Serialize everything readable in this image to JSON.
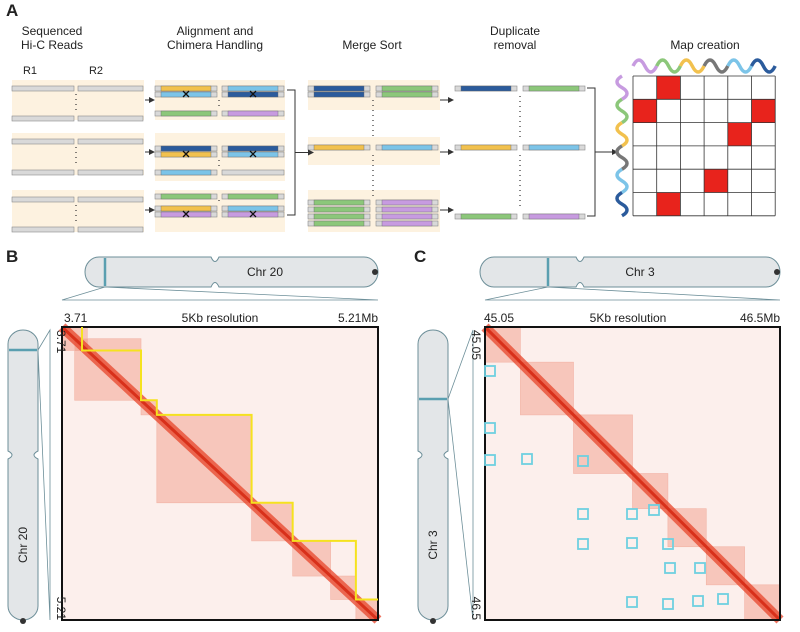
{
  "panels": {
    "A": {
      "label": "A",
      "steps": [
        {
          "title": [
            "Sequenced",
            "Hi-C Reads"
          ]
        },
        {
          "title": [
            "Alignment and",
            "Chimera Handling"
          ]
        },
        {
          "title": [
            "Merge Sort"
          ]
        },
        {
          "title": [
            "Duplicate",
            "removal"
          ]
        },
        {
          "title": [
            "Map creation"
          ]
        }
      ],
      "read_labels": [
        "R1",
        "R2"
      ]
    },
    "B": {
      "label": "B",
      "chromosome": "Chr 20",
      "range_start": "3.71",
      "resolution": "5Kb resolution",
      "range_end": "5.21Mb",
      "left_start": "3.71",
      "left_end": "5.21",
      "side_chromosome": "Chr 20"
    },
    "C": {
      "label": "C",
      "chromosome": "Chr 3",
      "range_start": "45.05",
      "resolution": "5Kb resolution",
      "range_end": "46.5Mb",
      "left_start": "45.05",
      "left_end": "46.5",
      "side_chromosome": "Chr 3"
    }
  }
}
